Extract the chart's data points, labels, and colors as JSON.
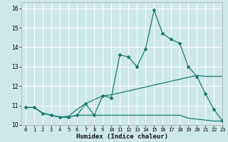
{
  "xlabel": "Humidex (Indice chaleur)",
  "bg_color": "#cde8e8",
  "grid_color": "#ffffff",
  "line_color": "#1a7a6e",
  "xlim": [
    -0.5,
    23
  ],
  "ylim": [
    10.0,
    16.3
  ],
  "yticks": [
    10,
    11,
    12,
    13,
    14,
    15,
    16
  ],
  "xticks": [
    0,
    1,
    2,
    3,
    4,
    5,
    6,
    7,
    8,
    9,
    10,
    11,
    12,
    13,
    14,
    15,
    16,
    17,
    18,
    19,
    20,
    21,
    22,
    23
  ],
  "main_x": [
    0,
    1,
    2,
    3,
    4,
    5,
    6,
    7,
    8,
    9,
    10,
    11,
    12,
    13,
    14,
    15,
    16,
    17,
    18,
    19,
    20,
    21,
    22,
    23
  ],
  "main_y": [
    10.9,
    10.9,
    10.6,
    10.5,
    10.4,
    10.4,
    10.5,
    11.1,
    10.5,
    11.5,
    11.4,
    13.6,
    13.5,
    13.0,
    13.9,
    15.9,
    14.7,
    14.4,
    14.2,
    13.0,
    12.5,
    11.6,
    10.8,
    10.2
  ],
  "upper_x": [
    0,
    1,
    2,
    3,
    4,
    5,
    6,
    7,
    8,
    9,
    10,
    11,
    12,
    13,
    14,
    15,
    16,
    17,
    18,
    19,
    20,
    21,
    22,
    23
  ],
  "upper_y": [
    10.9,
    10.9,
    10.6,
    10.5,
    10.4,
    10.45,
    10.8,
    11.1,
    11.3,
    11.5,
    11.55,
    11.65,
    11.75,
    11.85,
    11.95,
    12.05,
    12.15,
    12.25,
    12.35,
    12.45,
    12.55,
    12.5,
    12.5,
    12.5
  ],
  "lower_x": [
    0,
    1,
    2,
    3,
    4,
    5,
    6,
    7,
    8,
    9,
    10,
    11,
    12,
    13,
    14,
    15,
    16,
    17,
    18,
    19,
    20,
    21,
    22,
    23
  ],
  "lower_y": [
    10.9,
    10.9,
    10.6,
    10.5,
    10.4,
    10.4,
    10.5,
    10.5,
    10.5,
    10.5,
    10.5,
    10.5,
    10.5,
    10.5,
    10.5,
    10.5,
    10.5,
    10.5,
    10.5,
    10.35,
    10.3,
    10.25,
    10.2,
    10.2
  ]
}
